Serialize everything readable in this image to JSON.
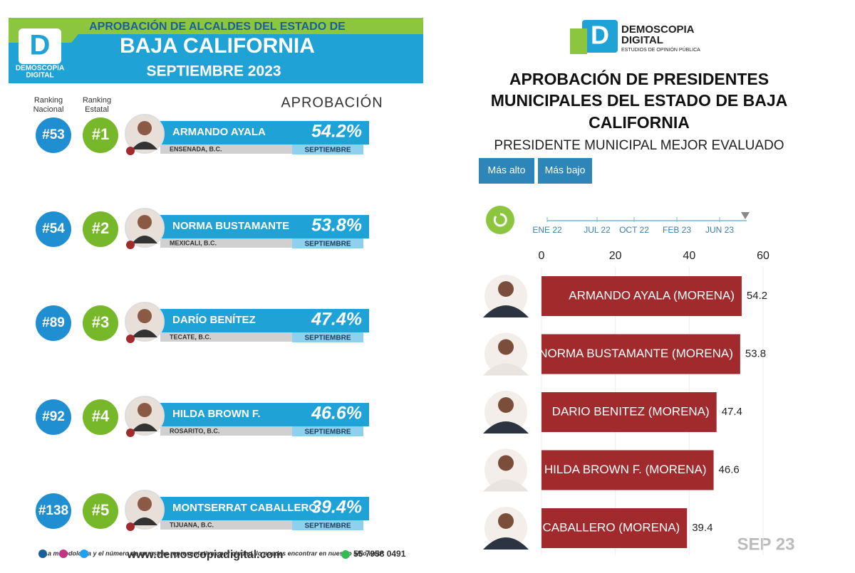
{
  "left_panel": {
    "header": {
      "line1": "APROBACIÓN DE ALCALDES DEL ESTADO DE",
      "line2": "BAJA CALIFORNIA",
      "line3": "SEPTIEMBRE 2023"
    },
    "brand": {
      "line1": "DEMOSCOPIA",
      "line2": "DIGITAL"
    },
    "column_headers": {
      "national": [
        "Ranking",
        "Nacional"
      ],
      "state": [
        "Ranking",
        "Estatal"
      ],
      "approval": "APROBACIÓN"
    },
    "rows": [
      {
        "national": "#53",
        "state": "#1",
        "name": "ARMANDO AYALA",
        "city": "ENSENADA, B.C.",
        "approval": "54.2%",
        "month": "SEPTIEMBRE"
      },
      {
        "national": "#54",
        "state": "#2",
        "name": "NORMA BUSTAMANTE",
        "city": "MEXICALI, B.C.",
        "approval": "53.8%",
        "month": "SEPTIEMBRE"
      },
      {
        "national": "#89",
        "state": "#3",
        "name": "DARÍO BENÍTEZ",
        "city": "TECATE, B.C.",
        "approval": "47.4%",
        "month": "SEPTIEMBRE"
      },
      {
        "national": "#92",
        "state": "#4",
        "name": "HILDA BROWN F.",
        "city": "ROSARITO, B.C.",
        "approval": "46.6%",
        "month": "SEPTIEMBRE"
      },
      {
        "national": "#138",
        "state": "#5",
        "name": "MONTSERRAT CABALLERO",
        "city": "TIJUANA, B.C.",
        "approval": "39.4%",
        "month": "SEPTIEMBRE"
      }
    ],
    "footnote": "*La metodología y el número de muestras representativas por ciudad, lo puedes encontrar en nuestro sitio web*",
    "website": "www.demoscopiadigital.com",
    "phone": "55 7958 0491"
  },
  "chart_data": {
    "type": "bar",
    "brand": {
      "line1": "DEMOSCOPIA",
      "line2": "DIGITAL",
      "line3": "ESTUDIOS DE OPINIÓN PÚBLICA"
    },
    "title": [
      "APROBACIÓN DE PRESIDENTES",
      "MUNICIPALES DEL ESTADO DE BAJA",
      "CALIFORNIA"
    ],
    "subtitle": "PRESIDENTE MUNICIPAL MEJOR EVALUADO",
    "buttons": [
      "Más alto",
      "Más bajo"
    ],
    "timeline": [
      "ENE 22",
      "JUL 22",
      "OCT 22",
      "FEB 23",
      "JUN 23"
    ],
    "period": "SEP 23",
    "categories": [
      "ARMANDO AYALA (MORENA)",
      "NORMA BUSTAMANTE (MORENA)",
      "DARIO BENITEZ (MORENA)",
      "HILDA BROWN F. (MORENA)",
      "CABALLERO (MORENA)"
    ],
    "values": [
      54.2,
      53.8,
      47.4,
      46.6,
      39.4
    ],
    "color": "#a12a2c",
    "xlim": [
      0,
      60
    ],
    "xticks": [
      0,
      20,
      40,
      60
    ],
    "grid": true
  }
}
